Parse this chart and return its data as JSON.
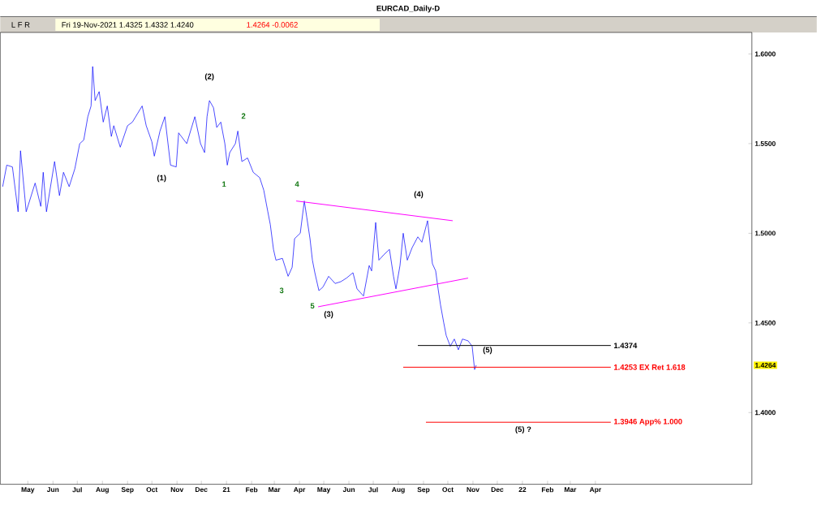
{
  "chart_data": {
    "type": "line",
    "title": "EURCAD_Daily-D",
    "x": [
      "2020-04-14",
      "2020-04-19",
      "2020-04-26",
      "2020-05-03",
      "2020-05-06",
      "2020-05-13",
      "2020-05-24",
      "2020-05-31",
      "2020-06-03",
      "2020-06-07",
      "2020-06-17",
      "2020-06-23",
      "2020-06-28",
      "2020-07-05",
      "2020-07-12",
      "2020-07-18",
      "2020-07-23",
      "2020-07-28",
      "2020-08-01",
      "2020-08-03",
      "2020-08-06",
      "2020-08-11",
      "2020-08-16",
      "2020-08-21",
      "2020-08-26",
      "2020-08-29",
      "2020-09-06",
      "2020-09-15",
      "2020-09-21",
      "2020-10-03",
      "2020-10-08",
      "2020-10-15",
      "2020-10-18",
      "2020-10-25",
      "2020-10-31",
      "2020-11-07",
      "2020-11-14",
      "2020-11-17",
      "2020-11-27",
      "2020-12-07",
      "2020-12-14",
      "2020-12-19",
      "2020-12-22",
      "2020-12-25",
      "2020-12-30",
      "2021-01-03",
      "2021-01-08",
      "2021-01-13",
      "2021-01-16",
      "2021-01-19",
      "2021-01-26",
      "2021-01-29",
      "2021-02-03",
      "2021-02-10",
      "2021-02-17",
      "2021-02-25",
      "2021-03-02",
      "2021-03-07",
      "2021-03-10",
      "2021-03-14",
      "2021-03-17",
      "2021-03-25",
      "2021-04-01",
      "2021-04-06",
      "2021-04-09",
      "2021-04-16",
      "2021-04-21",
      "2021-04-24",
      "2021-04-28",
      "2021-05-01",
      "2021-05-04",
      "2021-05-09",
      "2021-05-14",
      "2021-05-21",
      "2021-05-29",
      "2021-06-05",
      "2021-06-12",
      "2021-06-20",
      "2021-06-25",
      "2021-07-03",
      "2021-07-10",
      "2021-07-13",
      "2021-07-18",
      "2021-07-22",
      "2021-07-28",
      "2021-08-04",
      "2021-08-09",
      "2021-08-12",
      "2021-08-17",
      "2021-08-21",
      "2021-08-26",
      "2021-09-01",
      "2021-09-08",
      "2021-09-13",
      "2021-09-20",
      "2021-09-23",
      "2021-09-26",
      "2021-09-30",
      "2021-10-03",
      "2021-10-06",
      "2021-10-10",
      "2021-10-13",
      "2021-10-18",
      "2021-10-23",
      "2021-10-28",
      "2021-11-02",
      "2021-11-09",
      "2021-11-14",
      "2021-11-17",
      "2021-11-19"
    ],
    "series": [
      {
        "color": "#0000ff",
        "values": [
          1.526,
          1.538,
          1.537,
          1.512,
          1.546,
          1.512,
          1.528,
          1.515,
          1.534,
          1.512,
          1.54,
          1.521,
          1.534,
          1.526,
          1.536,
          1.55,
          1.552,
          1.565,
          1.571,
          1.593,
          1.574,
          1.579,
          1.562,
          1.571,
          1.554,
          1.56,
          1.548,
          1.56,
          1.562,
          1.571,
          1.56,
          1.551,
          1.543,
          1.557,
          1.565,
          1.538,
          1.537,
          1.556,
          1.55,
          1.565,
          1.55,
          1.545,
          1.565,
          1.574,
          1.57,
          1.559,
          1.562,
          1.55,
          1.538,
          1.545,
          1.55,
          1.557,
          1.54,
          1.542,
          1.534,
          1.531,
          1.524,
          1.512,
          1.505,
          1.491,
          1.485,
          1.486,
          1.476,
          1.481,
          1.497,
          1.5,
          1.518,
          1.509,
          1.497,
          1.485,
          1.478,
          1.468,
          1.47,
          1.476,
          1.472,
          1.473,
          1.475,
          1.478,
          1.469,
          1.465,
          1.482,
          1.479,
          1.506,
          1.485,
          1.488,
          1.491,
          1.476,
          1.469,
          1.482,
          1.5,
          1.485,
          1.492,
          1.498,
          1.495,
          1.507,
          1.495,
          1.483,
          1.479,
          1.469,
          1.46,
          1.45,
          1.443,
          1.437,
          1.441,
          1.435,
          1.441,
          1.44,
          1.437,
          1.424,
          1.4264
        ]
      },
      {
        "type": "line",
        "color": "#ff00ff",
        "x": [
          "2021-04-11",
          "2021-10-21"
        ],
        "values": [
          1.518,
          1.507
        ]
      },
      {
        "type": "line",
        "color": "#ff00ff",
        "x": [
          "2021-05-08",
          "2021-11-09"
        ],
        "values": [
          1.459,
          1.475
        ]
      },
      {
        "type": "line",
        "color": "#000000",
        "name": "1.4374",
        "x": [
          "2021-09-08",
          "2022-05-04"
        ],
        "values": [
          1.4374,
          1.4374
        ]
      },
      {
        "type": "line",
        "color": "#ff0000",
        "name": "1.4253 EX Ret 1.618",
        "x": [
          "2021-08-21",
          "2022-05-04"
        ],
        "values": [
          1.4253,
          1.4253
        ]
      },
      {
        "type": "line",
        "color": "#ff0000",
        "name": "1.3946 App% 1.000",
        "x": [
          "2021-09-18",
          "2022-05-04"
        ],
        "values": [
          1.3946,
          1.3946
        ]
      }
    ],
    "xlim": [
      "2020-04-11",
      "2022-10-25"
    ],
    "xticks": [
      {
        "value": "2020-05-15",
        "label": "May"
      },
      {
        "value": "2020-06-15",
        "label": "Jun"
      },
      {
        "value": "2020-07-15",
        "label": "Jul"
      },
      {
        "value": "2020-08-15",
        "label": "Aug"
      },
      {
        "value": "2020-09-15",
        "label": "Sep"
      },
      {
        "value": "2020-10-15",
        "label": "Oct"
      },
      {
        "value": "2020-11-15",
        "label": "Nov"
      },
      {
        "value": "2020-12-15",
        "label": "Dec"
      },
      {
        "value": "2021-01-15",
        "label": "21"
      },
      {
        "value": "2021-02-15",
        "label": "Feb"
      },
      {
        "value": "2021-03-15",
        "label": "Mar"
      },
      {
        "value": "2021-04-15",
        "label": "Apr"
      },
      {
        "value": "2021-05-15",
        "label": "May"
      },
      {
        "value": "2021-06-15",
        "label": "Jun"
      },
      {
        "value": "2021-07-15",
        "label": "Jul"
      },
      {
        "value": "2021-08-15",
        "label": "Aug"
      },
      {
        "value": "2021-09-15",
        "label": "Sep"
      },
      {
        "value": "2021-10-15",
        "label": "Oct"
      },
      {
        "value": "2021-11-15",
        "label": "Nov"
      },
      {
        "value": "2021-12-15",
        "label": "Dec"
      },
      {
        "value": "2022-01-15",
        "label": "22"
      },
      {
        "value": "2022-02-15",
        "label": "Feb"
      },
      {
        "value": "2022-03-15",
        "label": "Mar"
      },
      {
        "value": "2022-04-15",
        "label": "Apr"
      }
    ],
    "ylim": [
      1.36,
      1.612
    ],
    "yticks": [
      {
        "value": 1.4,
        "label": "1.4000"
      },
      {
        "value": 1.45,
        "label": "1.4500"
      },
      {
        "value": 1.5,
        "label": "1.5000"
      },
      {
        "value": 1.55,
        "label": "1.5500"
      },
      {
        "value": 1.6,
        "label": "1.6000"
      }
    ],
    "annotations": [
      "L F R",
      "Fri 19-Nov-2021 1.4325 1.4332 1.4240",
      "1.4264 -0.0062",
      "(1)",
      "(2)",
      "2",
      "1",
      "4",
      "(4)",
      "3",
      "5",
      "(3)",
      "(5)",
      "(5) ?",
      {
        "text": "1.4264",
        "y": 1.4264
      }
    ]
  }
}
